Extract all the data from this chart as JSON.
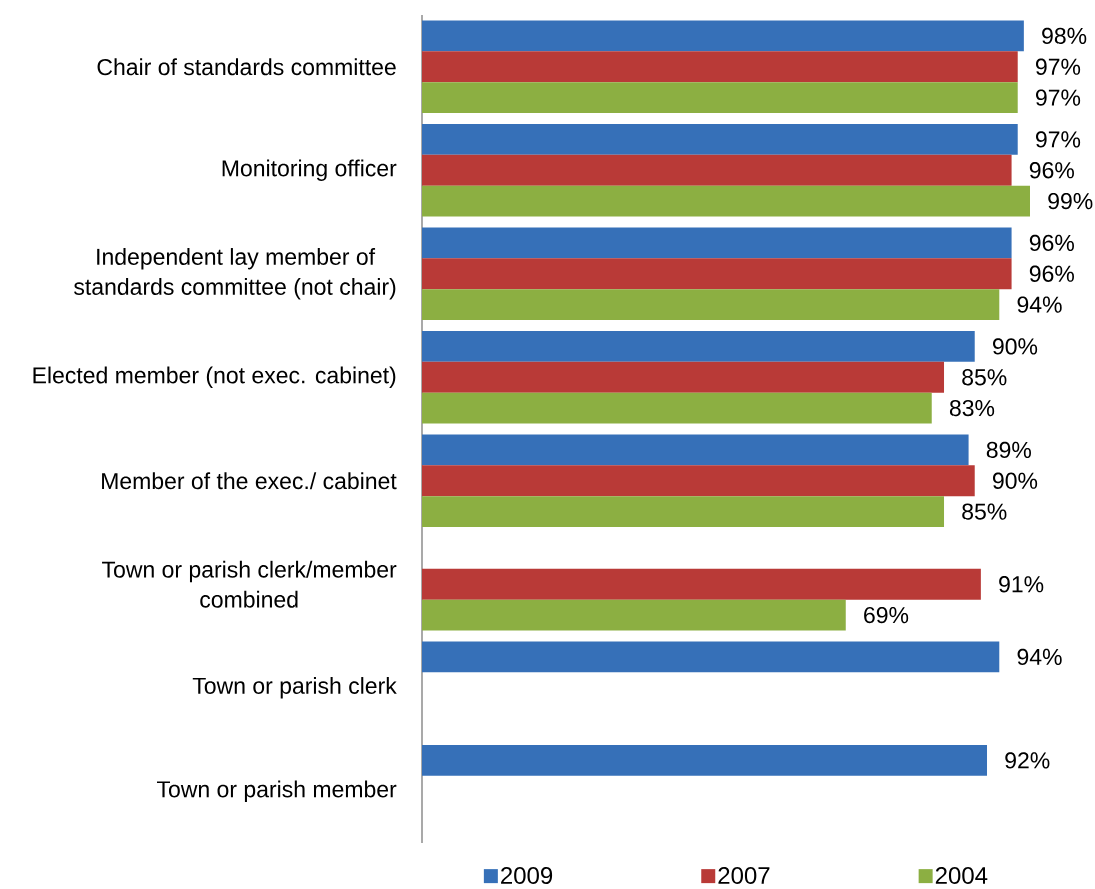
{
  "chart_data": {
    "type": "bar",
    "orientation": "horizontal",
    "categories": [
      "Chair of standards committee",
      "Monitoring officer",
      "Independent lay member of standards committee (not chair)",
      "Elected member (not exec. cabinet)",
      "Member of the exec./ cabinet",
      "Town or parish clerk/member combined",
      "Town or parish clerk",
      "Town or parish member"
    ],
    "series": [
      {
        "name": "2009",
        "color": "#3670b8",
        "values": [
          98,
          97,
          96,
          90,
          89,
          null,
          94,
          92
        ],
        "value_labels": [
          "98%",
          "97%",
          "96%",
          "90%",
          "89%",
          null,
          "94%",
          "92%"
        ]
      },
      {
        "name": "2007",
        "color": "#b93a37",
        "values": [
          97,
          96,
          96,
          85,
          90,
          91,
          null,
          null
        ],
        "value_labels": [
          "97%",
          "96%",
          "96%",
          "85%",
          "90%",
          "91%",
          null,
          null
        ]
      },
      {
        "name": "2004",
        "color": "#8caf42",
        "values": [
          97,
          99,
          94,
          83,
          85,
          69,
          null,
          null
        ],
        "value_labels": [
          "97%",
          "99%",
          "94%",
          "83%",
          "85%",
          "69%",
          null,
          null
        ]
      }
    ],
    "legend": "bottom",
    "tick_labels": "y"
  }
}
